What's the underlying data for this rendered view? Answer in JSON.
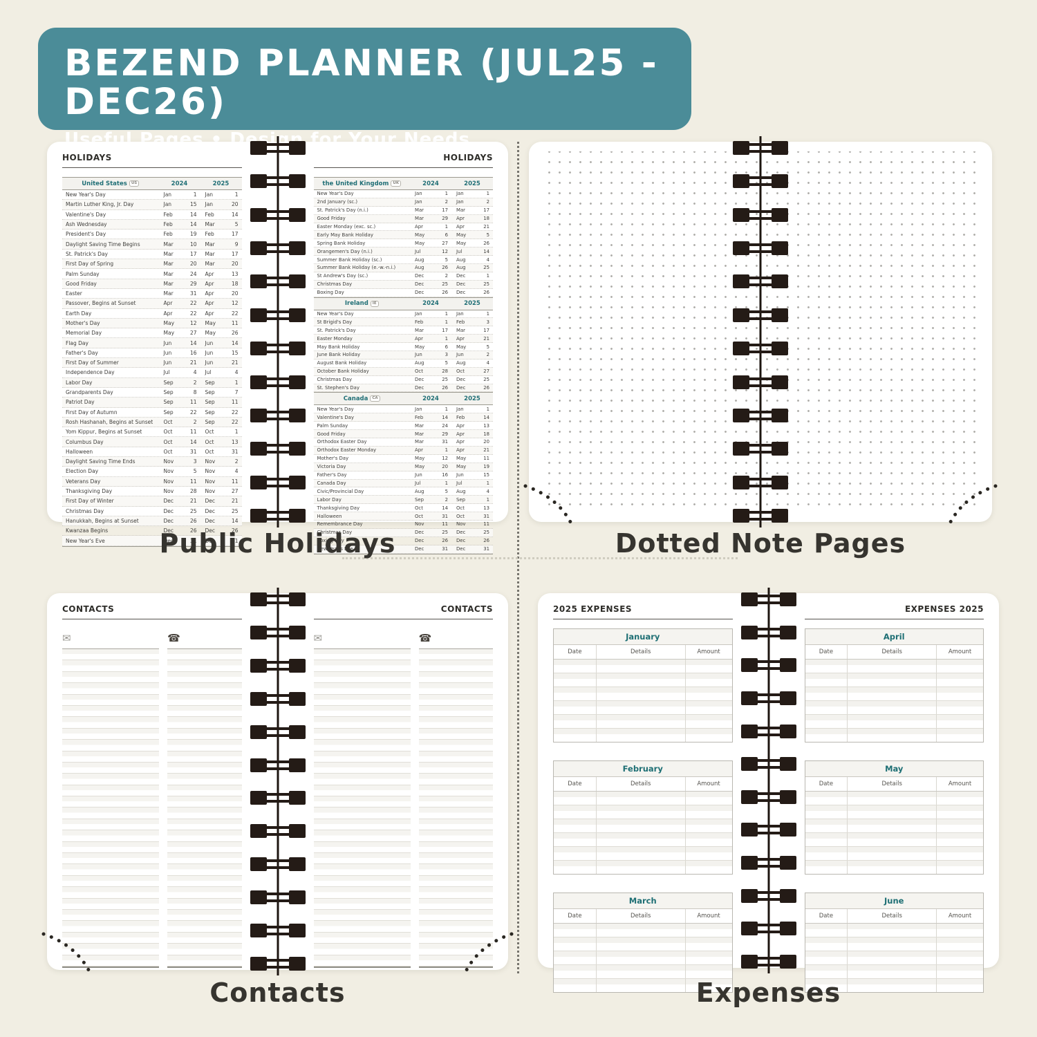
{
  "banner": {
    "title": "BEZEND PLANNER (JUL25 - DEC26)",
    "subtitle": "Useful Pages  •  Design for Your Needs"
  },
  "captions": {
    "top_left": "Public Holidays",
    "top_right": "Dotted Note Pages",
    "bottom_left": "Contacts",
    "bottom_right": "Expenses"
  },
  "holidays": {
    "page_header": "HOLIDAYS",
    "years": [
      "2024",
      "2025"
    ],
    "us": {
      "name": "United States",
      "badge": "US",
      "rows": [
        [
          "New Year's Day",
          "Jan",
          "1",
          "Jan",
          "1"
        ],
        [
          "Martin Luther King, Jr. Day",
          "Jan",
          "15",
          "Jan",
          "20"
        ],
        [
          "Valentine's Day",
          "Feb",
          "14",
          "Feb",
          "14"
        ],
        [
          "Ash Wednesday",
          "Feb",
          "14",
          "Mar",
          "5"
        ],
        [
          "President's Day",
          "Feb",
          "19",
          "Feb",
          "17"
        ],
        [
          "Daylight Saving Time Begins",
          "Mar",
          "10",
          "Mar",
          "9"
        ],
        [
          "St. Patrick's Day",
          "Mar",
          "17",
          "Mar",
          "17"
        ],
        [
          "First Day of Spring",
          "Mar",
          "20",
          "Mar",
          "20"
        ],
        [
          "Palm Sunday",
          "Mar",
          "24",
          "Apr",
          "13"
        ],
        [
          "Good Friday",
          "Mar",
          "29",
          "Apr",
          "18"
        ],
        [
          "Easter",
          "Mar",
          "31",
          "Apr",
          "20"
        ],
        [
          "Passover, Begins at Sunset",
          "Apr",
          "22",
          "Apr",
          "12"
        ],
        [
          "Earth Day",
          "Apr",
          "22",
          "Apr",
          "22"
        ],
        [
          "Mother's Day",
          "May",
          "12",
          "May",
          "11"
        ],
        [
          "Memorial Day",
          "May",
          "27",
          "May",
          "26"
        ],
        [
          "Flag Day",
          "Jun",
          "14",
          "Jun",
          "14"
        ],
        [
          "Father's Day",
          "Jun",
          "16",
          "Jun",
          "15"
        ],
        [
          "First Day of Summer",
          "Jun",
          "21",
          "Jun",
          "21"
        ],
        [
          "Independence Day",
          "Jul",
          "4",
          "Jul",
          "4"
        ],
        [
          "Labor Day",
          "Sep",
          "2",
          "Sep",
          "1"
        ],
        [
          "Grandparents Day",
          "Sep",
          "8",
          "Sep",
          "7"
        ],
        [
          "Patriot Day",
          "Sep",
          "11",
          "Sep",
          "11"
        ],
        [
          "First Day of Autumn",
          "Sep",
          "22",
          "Sep",
          "22"
        ],
        [
          "Rosh Hashanah, Begins at Sunset",
          "Oct",
          "2",
          "Sep",
          "22"
        ],
        [
          "Yom Kippur, Begins at Sunset",
          "Oct",
          "11",
          "Oct",
          "1"
        ],
        [
          "Columbus Day",
          "Oct",
          "14",
          "Oct",
          "13"
        ],
        [
          "Halloween",
          "Oct",
          "31",
          "Oct",
          "31"
        ],
        [
          "Daylight Saving Time Ends",
          "Nov",
          "3",
          "Nov",
          "2"
        ],
        [
          "Election Day",
          "Nov",
          "5",
          "Nov",
          "4"
        ],
        [
          "Veterans Day",
          "Nov",
          "11",
          "Nov",
          "11"
        ],
        [
          "Thanksgiving Day",
          "Nov",
          "28",
          "Nov",
          "27"
        ],
        [
          "First Day of Winter",
          "Dec",
          "21",
          "Dec",
          "21"
        ],
        [
          "Christmas Day",
          "Dec",
          "25",
          "Dec",
          "25"
        ],
        [
          "Hanukkah, Begins at Sunset",
          "Dec",
          "26",
          "Dec",
          "14"
        ],
        [
          "Kwanzaa Begins",
          "Dec",
          "26",
          "Dec",
          "26"
        ],
        [
          "New Year's Eve",
          "Dec",
          "31",
          "Dec",
          "31"
        ]
      ]
    },
    "uk": {
      "name": "the United Kingdom",
      "badge": "UK",
      "rows": [
        [
          "New Year's Day",
          "Jan",
          "1",
          "Jan",
          "1"
        ],
        [
          "2nd January (sc.)",
          "Jan",
          "2",
          "Jan",
          "2"
        ],
        [
          "St. Patrick's Day (n.i.)",
          "Mar",
          "17",
          "Mar",
          "17"
        ],
        [
          "Good Friday",
          "Mar",
          "29",
          "Apr",
          "18"
        ],
        [
          "Easter Monday (exc. sc.)",
          "Apr",
          "1",
          "Apr",
          "21"
        ],
        [
          "Early May Bank Holiday",
          "May",
          "6",
          "May",
          "5"
        ],
        [
          "Spring Bank Holiday",
          "May",
          "27",
          "May",
          "26"
        ],
        [
          "Orangemen's Day (n.i.)",
          "Jul",
          "12",
          "Jul",
          "14"
        ],
        [
          "Summer Bank Holiday (sc.)",
          "Aug",
          "5",
          "Aug",
          "4"
        ],
        [
          "Summer Bank Holiday (e.-w.-n.i.)",
          "Aug",
          "26",
          "Aug",
          "25"
        ],
        [
          "St Andrew's Day (sc.)",
          "Dec",
          "2",
          "Dec",
          "1"
        ],
        [
          "Christmas Day",
          "Dec",
          "25",
          "Dec",
          "25"
        ],
        [
          "Boxing Day",
          "Dec",
          "26",
          "Dec",
          "26"
        ]
      ]
    },
    "ireland": {
      "name": "Ireland",
      "badge": "IE",
      "rows": [
        [
          "New Year's Day",
          "Jan",
          "1",
          "Jan",
          "1"
        ],
        [
          "St Brigid's Day",
          "Feb",
          "1",
          "Feb",
          "3"
        ],
        [
          "St. Patrick's Day",
          "Mar",
          "17",
          "Mar",
          "17"
        ],
        [
          "Easter Monday",
          "Apr",
          "1",
          "Apr",
          "21"
        ],
        [
          "May Bank Holiday",
          "May",
          "6",
          "May",
          "5"
        ],
        [
          "June Bank Holiday",
          "Jun",
          "3",
          "Jun",
          "2"
        ],
        [
          "August Bank Holiday",
          "Aug",
          "5",
          "Aug",
          "4"
        ],
        [
          "October Bank Holiday",
          "Oct",
          "28",
          "Oct",
          "27"
        ],
        [
          "Christmas Day",
          "Dec",
          "25",
          "Dec",
          "25"
        ],
        [
          "St. Stephen's Day",
          "Dec",
          "26",
          "Dec",
          "26"
        ]
      ]
    },
    "canada": {
      "name": "Canada",
      "badge": "CA",
      "rows": [
        [
          "New Year's Day",
          "Jan",
          "1",
          "Jan",
          "1"
        ],
        [
          "Valentine's Day",
          "Feb",
          "14",
          "Feb",
          "14"
        ],
        [
          "Palm Sunday",
          "Mar",
          "24",
          "Apr",
          "13"
        ],
        [
          "Good Friday",
          "Mar",
          "29",
          "Apr",
          "18"
        ],
        [
          "Orthodox Easter Day",
          "Mar",
          "31",
          "Apr",
          "20"
        ],
        [
          "Orthodox Easter Monday",
          "Apr",
          "1",
          "Apr",
          "21"
        ],
        [
          "Mother's Day",
          "May",
          "12",
          "May",
          "11"
        ],
        [
          "Victoria Day",
          "May",
          "20",
          "May",
          "19"
        ],
        [
          "Father's Day",
          "Jun",
          "16",
          "Jun",
          "15"
        ],
        [
          "Canada Day",
          "Jul",
          "1",
          "Jul",
          "1"
        ],
        [
          "Civic/Provincial Day",
          "Aug",
          "5",
          "Aug",
          "4"
        ],
        [
          "Labor Day",
          "Sep",
          "2",
          "Sep",
          "1"
        ],
        [
          "Thanksgiving Day",
          "Oct",
          "14",
          "Oct",
          "13"
        ],
        [
          "Halloween",
          "Oct",
          "31",
          "Oct",
          "31"
        ],
        [
          "Remembrance Day",
          "Nov",
          "11",
          "Nov",
          "11"
        ],
        [
          "Christmas Day",
          "Dec",
          "25",
          "Dec",
          "25"
        ],
        [
          "Boxing Day",
          "Dec",
          "26",
          "Dec",
          "26"
        ],
        [
          "New Year's Eve",
          "Dec",
          "31",
          "Dec",
          "31"
        ]
      ]
    }
  },
  "contacts": {
    "page_header": "CONTACTS",
    "email_icon": "✉",
    "phone_icon": "☎"
  },
  "expenses": {
    "left_header": "2025 EXPENSES",
    "right_header": "EXPENSES 2025",
    "columns": [
      "Date",
      "Details",
      "Amount"
    ],
    "months": [
      "January",
      "February",
      "March",
      "April",
      "May",
      "June"
    ]
  },
  "colors": {
    "banner_teal": "#4b8c98",
    "header_teal": "#1e6f74",
    "background_cream": "#f1eee3",
    "spiral_black": "#241b16"
  }
}
